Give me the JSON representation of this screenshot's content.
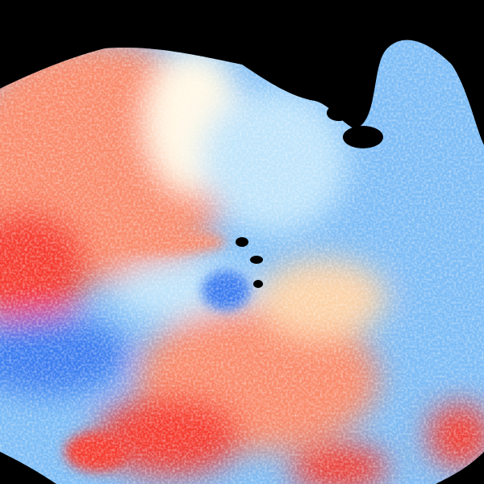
{
  "image": {
    "kind": "doppler-velocity-radar-field",
    "colors": {
      "background": "#000000",
      "strong_outbound": "#f53a2e",
      "moderate_outbound": "#f98a6a",
      "weak_outbound": "#fcd2a8",
      "near_zero": "#fff8e6",
      "weak_inbound": "#bfe4fb",
      "moderate_inbound": "#7cbcf6",
      "strong_inbound": "#3a7cf0"
    }
  }
}
